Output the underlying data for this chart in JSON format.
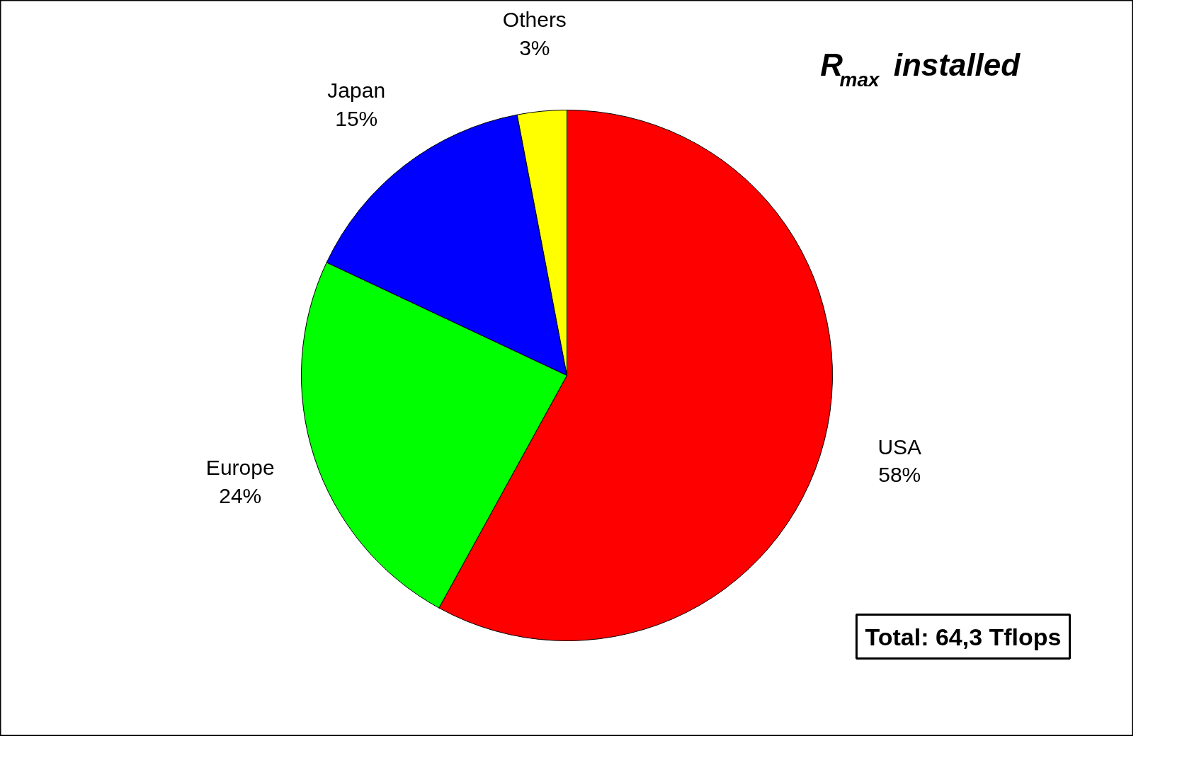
{
  "chart_data": {
    "type": "pie",
    "title": "R$_{max}$ installed",
    "categories": [
      "USA",
      "Europe",
      "Japan",
      "Others"
    ],
    "values": [
      58,
      24,
      15,
      3
    ],
    "colors": [
      "#ff0000",
      "#00ff00",
      "#0000ff",
      "#ffff00"
    ],
    "value_labels": [
      "58%",
      "24%",
      "15%",
      "3%"
    ],
    "annotations": [
      "Total: 64,3 Tflops"
    ]
  }
}
